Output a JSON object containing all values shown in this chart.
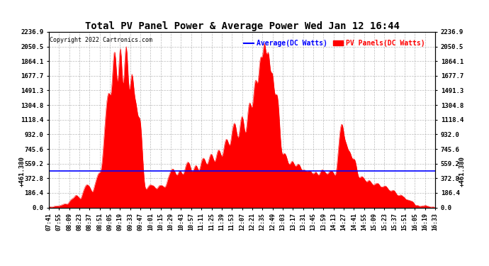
{
  "title": "Total PV Panel Power & Average Power Wed Jan 12 16:44",
  "copyright": "Copyright 2022 Cartronics.com",
  "legend_avg": "Average(DC Watts)",
  "legend_pv": "PV Panels(DC Watts)",
  "avg_value": 461.38,
  "ymax": 2236.9,
  "yticks": [
    0.0,
    186.4,
    372.8,
    559.2,
    745.6,
    932.0,
    1118.4,
    1304.8,
    1491.3,
    1677.7,
    1864.1,
    2050.5,
    2236.9
  ],
  "xtick_labels": [
    "07:41",
    "07:55",
    "08:09",
    "08:23",
    "08:37",
    "08:51",
    "09:05",
    "09:19",
    "09:33",
    "09:47",
    "10:01",
    "10:15",
    "10:29",
    "10:43",
    "10:57",
    "11:11",
    "11:25",
    "11:39",
    "11:53",
    "12:07",
    "12:21",
    "12:35",
    "12:49",
    "13:03",
    "13:17",
    "13:31",
    "13:45",
    "13:59",
    "14:13",
    "14:27",
    "14:41",
    "14:55",
    "15:09",
    "15:23",
    "15:37",
    "15:51",
    "16:05",
    "16:19",
    "16:33"
  ],
  "fill_color": "#FF0000",
  "line_color": "#FF0000",
  "avg_line_color": "#0000FF",
  "background_color": "#FFFFFF",
  "grid_color": "#AAAAAA",
  "title_color": "#000000",
  "avg_label_color": "#0000FF",
  "pv_label_color": "#FF0000"
}
